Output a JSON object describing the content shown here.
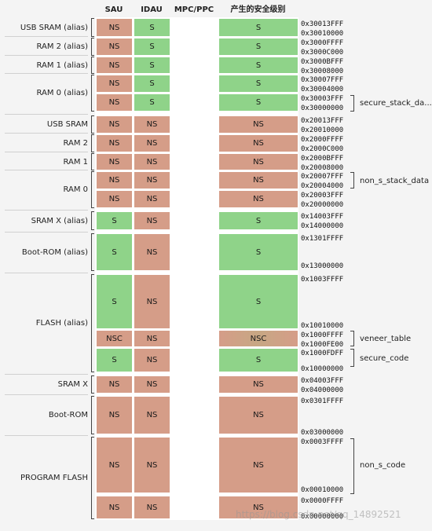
{
  "headers": {
    "sau": "SAU",
    "idau": "IDAU",
    "mpc": "MPC/PPC",
    "level": "产生的安全级别"
  },
  "colors": {
    "ns": "#d59d88",
    "s": "#8fd389",
    "nsc_blend": "#c7a784",
    "sep": "#ffffff"
  },
  "regions": [
    {
      "label": "USB SRAM (alias)"
    },
    {
      "label": "RAM 2 (alias)"
    },
    {
      "label": "RAM 1 (alias)"
    },
    {
      "label": "RAM 0 (alias)"
    },
    {
      "label": "USB SRAM"
    },
    {
      "label": "RAM 2"
    },
    {
      "label": "RAM 1"
    },
    {
      "label": "RAM 0"
    },
    {
      "label": "SRAM X (alias)"
    },
    {
      "label": "Boot-ROM (alias)"
    },
    {
      "label": "FLASH (alias)"
    },
    {
      "label": "SRAM X"
    },
    {
      "label": "Boot-ROM"
    },
    {
      "label": "PROGRAM FLASH"
    }
  ],
  "rows": [
    {
      "sau": "NS",
      "idau": "S",
      "level": "S",
      "level_color": "s"
    },
    {
      "sau": "NS",
      "idau": "S",
      "level": "S",
      "level_color": "s"
    },
    {
      "sau": "NS",
      "idau": "S",
      "level": "S",
      "level_color": "s"
    },
    {
      "sau": "NS",
      "idau": "S",
      "level": "S",
      "level_color": "s"
    },
    {
      "sau": "NS",
      "idau": "S",
      "level": "S",
      "level_color": "s"
    },
    {
      "sau": "NS",
      "idau": "NS",
      "level": "NS",
      "level_color": "ns"
    },
    {
      "sau": "NS",
      "idau": "NS",
      "level": "NS",
      "level_color": "ns"
    },
    {
      "sau": "NS",
      "idau": "NS",
      "level": "NS",
      "level_color": "ns"
    },
    {
      "sau": "NS",
      "idau": "NS",
      "level": "NS",
      "level_color": "ns"
    },
    {
      "sau": "NS",
      "idau": "NS",
      "level": "NS",
      "level_color": "ns"
    },
    {
      "sau": "S",
      "idau": "NS",
      "level": "S",
      "level_color": "s"
    },
    {
      "sau": "S",
      "idau": "NS",
      "level": "S",
      "level_color": "s"
    },
    {
      "sau": "S",
      "idau": "NS",
      "level": "S",
      "level_color": "s"
    },
    {
      "sau": "NSC",
      "idau": "NS",
      "level": "NSC",
      "level_color": "nsc_blend"
    },
    {
      "sau": "S",
      "idau": "NS",
      "level": "S",
      "level_color": "s"
    },
    {
      "sau": "NS",
      "idau": "NS",
      "level": "NS",
      "level_color": "ns"
    },
    {
      "sau": "NS",
      "idau": "NS",
      "level": "NS",
      "level_color": "ns"
    },
    {
      "sau": "NS",
      "idau": "NS",
      "level": "NS",
      "level_color": "ns"
    },
    {
      "sau": "NS",
      "idau": "NS",
      "level": "NS",
      "level_color": "ns"
    }
  ],
  "addresses": [
    "0x30013FFF",
    "0x30010000",
    "0x3000FFFF",
    "0x3000C000",
    "0x3000BFFF",
    "0x30008000",
    "0x30007FFF",
    "0x30004000",
    "0x30003FFF",
    "0x30000000",
    "0x20013FFF",
    "0x20010000",
    "0x2000FFFF",
    "0x2000C000",
    "0x2000BFFF",
    "0x20008000",
    "0x20007FFF",
    "0x20004000",
    "0x20003FFF",
    "0x20000000",
    "0x14003FFF",
    "0x14000000",
    "0x1301FFFF",
    "0x13000000",
    "0x1003FFFF",
    "0x10010000",
    "0x1000FFFF",
    "0x1000FE00",
    "0x1000FDFF",
    "0x10000000",
    "0x04003FFF",
    "0x04000000",
    "0x0301FFFF",
    "0x03000000",
    "0x0003FFFF",
    "0x00010000",
    "0x0000FFFF",
    "0x00000000"
  ],
  "notes": [
    {
      "text": "secure_stack_da..."
    },
    {
      "text": "non_s_stack_data"
    },
    {
      "text": "veneer_table"
    },
    {
      "text": "secure_code"
    },
    {
      "text": "non_s_code"
    }
  ],
  "watermark": "https://blog.csdn.net/qq_14892521"
}
